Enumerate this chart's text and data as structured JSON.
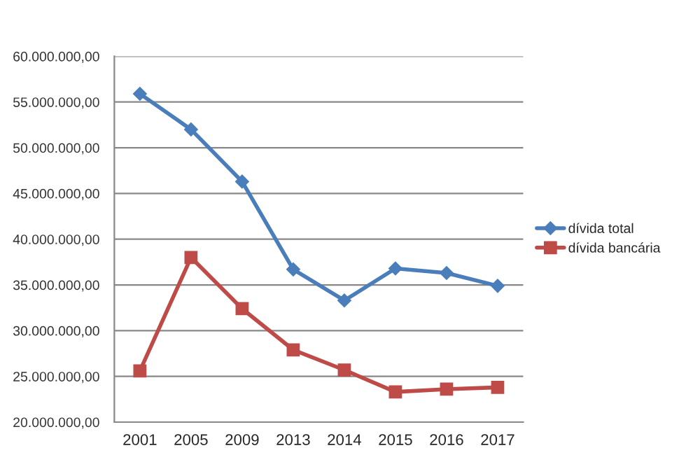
{
  "chart_data": {
    "type": "line",
    "categories": [
      "2001",
      "2005",
      "2009",
      "2013",
      "2014",
      "2015",
      "2016",
      "2017"
    ],
    "series": [
      {
        "name": "dívida total",
        "color": "#4a7ebb",
        "marker": "diamond",
        "values": [
          55900000,
          52000000,
          46300000,
          36700000,
          33300000,
          36800000,
          36300000,
          34900000
        ]
      },
      {
        "name": "dívida bancária",
        "color": "#be4b48",
        "marker": "square",
        "values": [
          25600000,
          38000000,
          32400000,
          27900000,
          25700000,
          23300000,
          23600000,
          23800000
        ]
      }
    ],
    "ylim": [
      20000000,
      60000000
    ],
    "yticks": [
      {
        "value": 20000000,
        "label": "20.000.000,00"
      },
      {
        "value": 25000000,
        "label": "25.000.000,00"
      },
      {
        "value": 30000000,
        "label": "30.000.000,00"
      },
      {
        "value": 35000000,
        "label": "35.000.000,00"
      },
      {
        "value": 40000000,
        "label": "40.000.000,00"
      },
      {
        "value": 45000000,
        "label": "45.000.000,00"
      },
      {
        "value": 50000000,
        "label": "50.000.000,00"
      },
      {
        "value": 55000000,
        "label": "55.000.000,00"
      },
      {
        "value": 60000000,
        "label": "60.000.000,00"
      }
    ],
    "grid": "y",
    "legend": "right",
    "line_style": "solid"
  }
}
